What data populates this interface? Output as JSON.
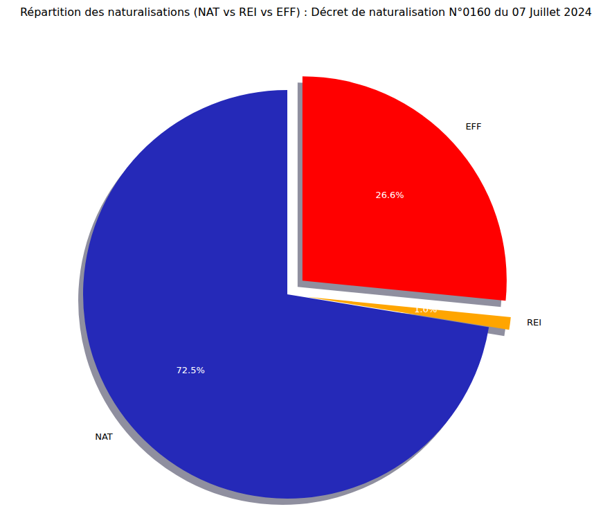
{
  "chart_data": {
    "type": "pie",
    "title": "Répartition des naturalisations (NAT vs REI vs EFF) : Décret de naturalisation N°0160 du 07 Juillet 2024",
    "categories": [
      "NAT",
      "REI",
      "EFF"
    ],
    "values": [
      72.5,
      1.0,
      26.6
    ],
    "value_labels": [
      "72.5%",
      "1.0%",
      "26.6%"
    ],
    "colors": [
      "#2529b8",
      "#ffa500",
      "#ff0000"
    ],
    "data_labels": true
  }
}
